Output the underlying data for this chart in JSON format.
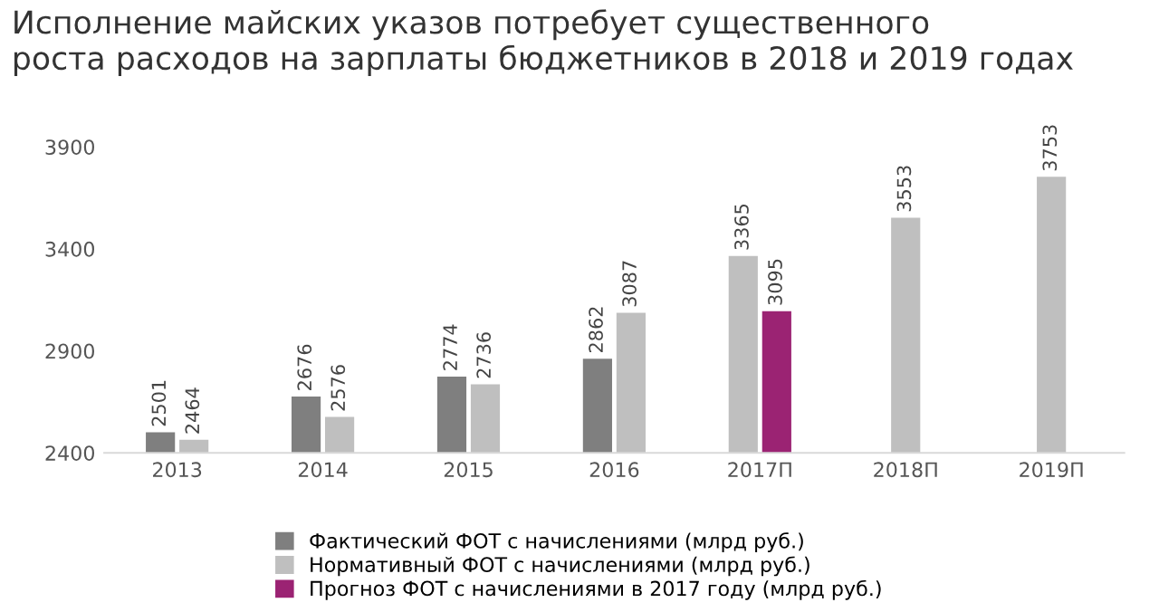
{
  "chart_data": {
    "type": "bar",
    "title": "Исполнение майских указов потребует существенного\nроста расходов на зарплаты бюджетников в 2018 и 2019 годах",
    "categories": [
      "2013",
      "2014",
      "2015",
      "2016",
      "2017П",
      "2018П",
      "2019П"
    ],
    "series": [
      {
        "name": "Фактический ФОТ с начислениями (млрд руб.)",
        "color": "#7f7f7f",
        "values": [
          2501,
          2676,
          2774,
          2862,
          null,
          null,
          null
        ]
      },
      {
        "name": "Нормативный ФОТ с начислениями (млрд руб.)",
        "color": "#bfbfbf",
        "values": [
          2464,
          2576,
          2736,
          3087,
          3365,
          3553,
          3753
        ]
      },
      {
        "name": "Прогноз ФОТ с начислениями в 2017 году (млрд руб.)",
        "color": "#9b2373",
        "values": [
          null,
          null,
          null,
          null,
          3095,
          null,
          null
        ]
      }
    ],
    "ylim": [
      2400,
      3900
    ],
    "yticks": [
      2400,
      2900,
      3400,
      3900
    ],
    "grid": false,
    "legend": "bottom",
    "data_labels": true
  }
}
